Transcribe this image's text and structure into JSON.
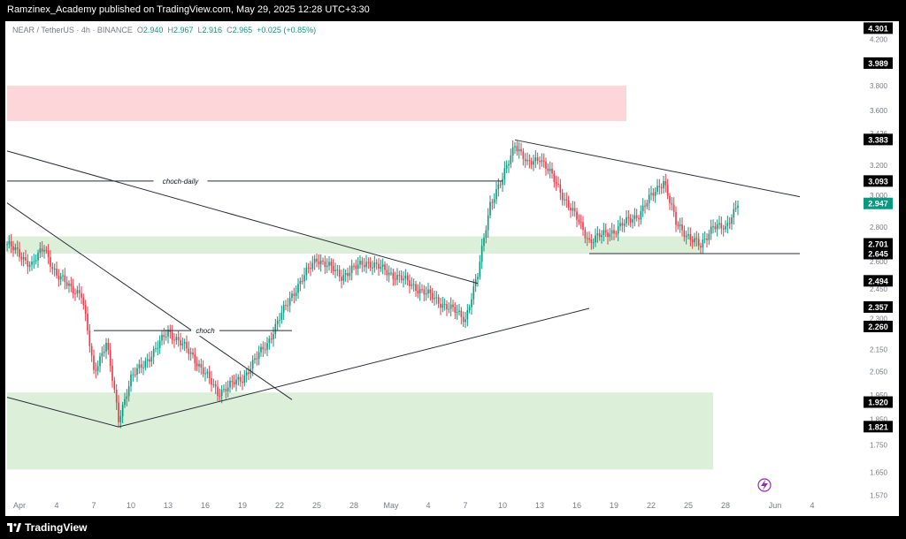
{
  "header": {
    "publisher_line": "Ramzinex_Academy published on TradingView.com, May 29, 2025 12:28 UTC+3:30"
  },
  "legend": {
    "symbol": "NEAR / TetherUS · 4h · BINANCE",
    "open_label": "O",
    "open": "2.940",
    "high_label": "H",
    "high": "2.967",
    "low_label": "L",
    "low": "2.916",
    "close_label": "C",
    "close": "2.965",
    "change": "+0.025 (+0.85%)"
  },
  "footer": {
    "brand": "TradingView"
  },
  "colors": {
    "up": "#089981",
    "down": "#f23645",
    "resistance_zone": "#fcd6d8",
    "support_zone": "#dcefd9",
    "trendline": "#2a2e39",
    "axis_text": "#787b86",
    "price_tag_bg": "#000000",
    "last_price_bg": "#089981"
  },
  "chart_data": {
    "type": "candlestick",
    "title": "",
    "x_tick_labels": [
      "Apr",
      "4",
      "7",
      "10",
      "13",
      "16",
      "19",
      "22",
      "25",
      "28",
      "May",
      "4",
      "7",
      "10",
      "13",
      "16",
      "19",
      "22",
      "25",
      "28",
      "Jun",
      "4"
    ],
    "y_tick_labels": [
      "4.200",
      "3.989",
      "3.800",
      "3.600",
      "3.426",
      "3.200",
      "3.000",
      "2.800",
      "2.600",
      "2.450",
      "2.300",
      "2.150",
      "2.050",
      "1.950",
      "1.850",
      "1.750",
      "1.650",
      "1.570"
    ],
    "y_axis_highlighted_prices": [
      "4.301",
      "3.989",
      "3.383",
      "3.093",
      "2.947",
      "2.701",
      "2.645",
      "2.494",
      "2.357",
      "2.260",
      "1.920",
      "1.821"
    ],
    "last_price": "2.965",
    "ohlc_last": {
      "open": 2.94,
      "high": 2.967,
      "low": 2.916,
      "close": 2.965,
      "change": 0.025,
      "change_pct": 0.85
    },
    "close_path": [
      {
        "date": "2025-03-31",
        "close": 2.7
      },
      {
        "date": "2025-04-02",
        "close": 2.58
      },
      {
        "date": "2025-04-03",
        "close": 2.68
      },
      {
        "date": "2025-04-04",
        "close": 2.52
      },
      {
        "date": "2025-04-06",
        "close": 2.42
      },
      {
        "date": "2025-04-07",
        "close": 2.05
      },
      {
        "date": "2025-04-08",
        "close": 2.18
      },
      {
        "date": "2025-04-09",
        "close": 1.85
      },
      {
        "date": "2025-04-10",
        "close": 2.02
      },
      {
        "date": "2025-04-12",
        "close": 2.15
      },
      {
        "date": "2025-04-13",
        "close": 2.24
      },
      {
        "date": "2025-04-15",
        "close": 2.12
      },
      {
        "date": "2025-04-17",
        "close": 1.96
      },
      {
        "date": "2025-04-19",
        "close": 2.02
      },
      {
        "date": "2025-04-21",
        "close": 2.18
      },
      {
        "date": "2025-04-23",
        "close": 2.42
      },
      {
        "date": "2025-04-25",
        "close": 2.62
      },
      {
        "date": "2025-04-27",
        "close": 2.52
      },
      {
        "date": "2025-04-29",
        "close": 2.6
      },
      {
        "date": "2025-05-02",
        "close": 2.5
      },
      {
        "date": "2025-05-05",
        "close": 2.38
      },
      {
        "date": "2025-05-07",
        "close": 2.3
      },
      {
        "date": "2025-05-08",
        "close": 2.52
      },
      {
        "date": "2025-05-09",
        "close": 2.95
      },
      {
        "date": "2025-05-10",
        "close": 3.1
      },
      {
        "date": "2025-05-11",
        "close": 3.36
      },
      {
        "date": "2025-05-12",
        "close": 3.2
      },
      {
        "date": "2025-05-13",
        "close": 3.26
      },
      {
        "date": "2025-05-15",
        "close": 2.98
      },
      {
        "date": "2025-05-17",
        "close": 2.72
      },
      {
        "date": "2025-05-19",
        "close": 2.78
      },
      {
        "date": "2025-05-21",
        "close": 2.88
      },
      {
        "date": "2025-05-23",
        "close": 3.1
      },
      {
        "date": "2025-05-24",
        "close": 2.82
      },
      {
        "date": "2025-05-26",
        "close": 2.68
      },
      {
        "date": "2025-05-27",
        "close": 2.82
      },
      {
        "date": "2025-05-28",
        "close": 2.78
      },
      {
        "date": "2025-05-29",
        "close": 2.965
      }
    ],
    "zones": [
      {
        "name": "resistance-zone",
        "kind": "supply",
        "from_date": "2025-03-31",
        "to_date": "2025-05-20",
        "price_low": 3.52,
        "price_high": 3.8
      },
      {
        "name": "support-zone-mid",
        "kind": "demand",
        "from_date": "2025-03-31",
        "to_date": "2025-05-26",
        "price_low": 2.645,
        "price_high": 2.745
      },
      {
        "name": "support-zone-low",
        "kind": "demand",
        "from_date": "2025-03-31",
        "to_date": "2025-05-27",
        "price_low": 1.66,
        "price_high": 1.96
      }
    ],
    "lines": [
      {
        "name": "descending-trendline-long",
        "from": [
          "2025-03-31",
          3.3
        ],
        "to": [
          "2025-05-08",
          2.48
        ]
      },
      {
        "name": "descending-trendline-steep",
        "from": [
          "2025-03-31",
          2.95
        ],
        "to": [
          "2025-04-23",
          1.93
        ]
      },
      {
        "name": "support-trendline-left",
        "from": [
          "2025-03-31",
          1.94
        ],
        "to": [
          "2025-04-09",
          1.82
        ]
      },
      {
        "name": "ascending-trendline",
        "from": [
          "2025-04-09",
          1.82
        ],
        "to": [
          "2025-05-17",
          2.35
        ]
      },
      {
        "name": "triangle-upper-trendline",
        "from": [
          "2025-05-11",
          3.38
        ],
        "to": [
          "2025-06-03",
          2.99
        ]
      },
      {
        "name": "triangle-base-line",
        "from": [
          "2025-05-17",
          2.645
        ],
        "to": [
          "2025-06-03",
          2.645
        ]
      },
      {
        "name": "choch-daily-line",
        "from": [
          "2025-03-31",
          3.093
        ],
        "to": [
          "2025-05-10",
          3.093
        ]
      },
      {
        "name": "choch-line",
        "from": [
          "2025-04-07",
          2.24
        ],
        "to": [
          "2025-04-23",
          2.24
        ]
      }
    ],
    "annotations": [
      {
        "text": "choch-daily",
        "date": "2025-04-14",
        "price": 3.093
      },
      {
        "text": "choch",
        "date": "2025-04-16",
        "price": 2.24
      }
    ]
  }
}
